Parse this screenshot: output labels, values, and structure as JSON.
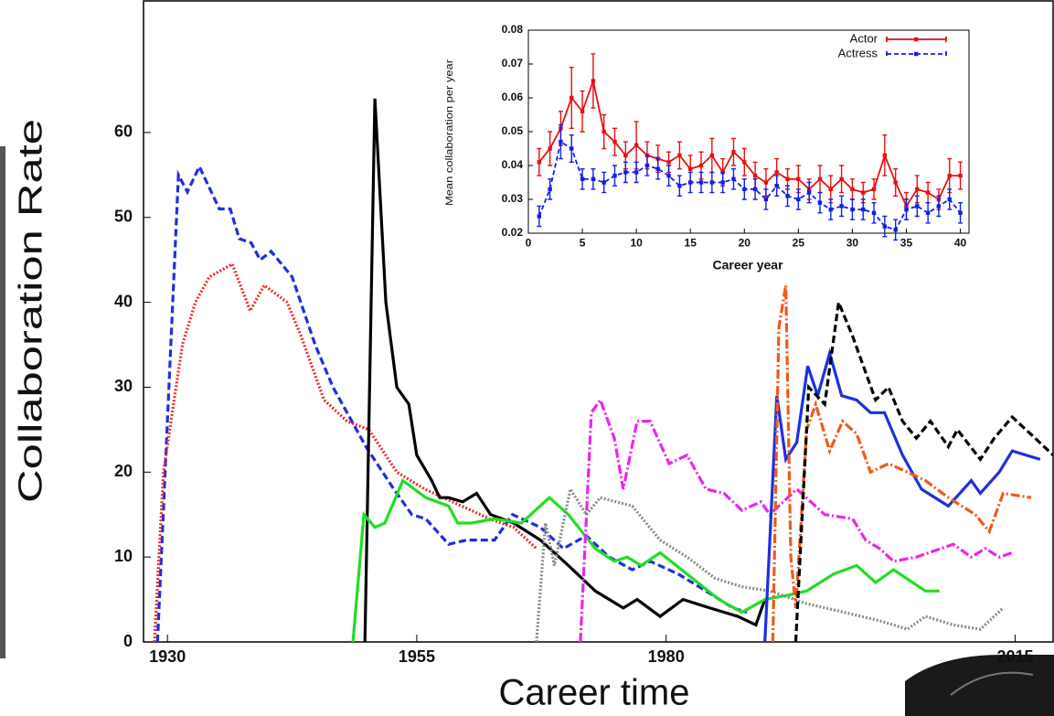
{
  "chart_data": [
    {
      "type": "line",
      "xlabel": "Career time",
      "ylabel": "Collaboration Rate",
      "xlim": [
        1927.6,
        2018.8
      ],
      "xticks": [
        1930,
        1955,
        1980,
        2015
      ],
      "ylim": [
        0,
        75.5
      ],
      "yticks": [
        0,
        10,
        20,
        30,
        40,
        50,
        60
      ],
      "series": [
        {
          "color": "#1f2fe0",
          "dash": "dashed",
          "x": [
            1929,
            1931.1,
            1932,
            1933.2,
            1935.2,
            1936.3,
            1937.2,
            1938.4,
            1939.3,
            1940.4,
            1942.5,
            1944.8,
            1946.6,
            1949.9,
            1952.7,
            1954.5,
            1955.9,
            1958.2,
            1960,
            1962.8,
            1964.6,
            1967.4,
            1969.7,
            1972,
            1974.3,
            1976.6,
            1978.4,
            1981.2,
            1984,
            1986.7,
            1988.1
          ],
          "values": [
            0,
            55,
            53,
            56,
            51,
            51,
            47.5,
            47,
            45,
            46,
            43,
            35,
            30,
            23,
            18,
            15,
            14.5,
            11.5,
            12,
            12,
            15,
            13.5,
            11,
            12.5,
            10,
            8.5,
            9.5,
            8,
            6,
            4,
            3.5
          ]
        },
        {
          "color": "#e83030",
          "dash": "dotted",
          "x": [
            1928.7,
            1929.6,
            1931.5,
            1932.8,
            1934.2,
            1936.5,
            1938.3,
            1939.7,
            1942,
            1943.4,
            1945.7,
            1948,
            1950.2,
            1953,
            1955.8,
            1959.5,
            1962.3,
            1964.7,
            1967
          ],
          "values": [
            0,
            20,
            35,
            40,
            43,
            44.5,
            39,
            42,
            40,
            36,
            28.5,
            26,
            25,
            20,
            18,
            16,
            14.5,
            13.5,
            11
          ]
        },
        {
          "color": "#000000",
          "dash": "solid",
          "x": [
            1949.8,
            1950.8,
            1951.9,
            1953,
            1954.2,
            1955,
            1956.5,
            1957.3,
            1958.2,
            1959.6,
            1961,
            1962.4,
            1964.7,
            1967.4,
            1970.2,
            1972.9,
            1975.7,
            1977.1,
            1979.4,
            1981.7,
            1984.4,
            1987.2,
            1989,
            1989.9
          ],
          "values": [
            0,
            64,
            40,
            30,
            28,
            22,
            19,
            17,
            17,
            16.5,
            17.5,
            15,
            14,
            12,
            9,
            6,
            4,
            5,
            3,
            5,
            4,
            3,
            2,
            5
          ]
        },
        {
          "color": "#22dd22",
          "dash": "solid",
          "x": [
            1948.6,
            1949.7,
            1950.8,
            1951.8,
            1953.6,
            1955.9,
            1958.2,
            1959.1,
            1960.5,
            1962.8,
            1965.5,
            1968.3,
            1970.2,
            1972.9,
            1974.8,
            1976.1,
            1977.5,
            1979.4,
            1982.1,
            1985.3,
            1987.6,
            1989.9,
            1992.2,
            1994.1,
            1996.8,
            1999.1,
            2001,
            2002.8,
            2006,
            2007.4
          ],
          "values": [
            0,
            15,
            13.5,
            14,
            19,
            17,
            16,
            14,
            14,
            14.5,
            14,
            17,
            15,
            11,
            9.5,
            10,
            9,
            10.5,
            8,
            5,
            3.5,
            5,
            5.5,
            6,
            8,
            9,
            7,
            8.5,
            6,
            6
          ]
        },
        {
          "color": "#8a8a8a",
          "dash": "dotted",
          "x": [
            1967,
            1967.9,
            1968.8,
            1970.4,
            1972,
            1973.4,
            1976.6,
            1979.4,
            1982.1,
            1984.9,
            1987.6,
            1990.4,
            1994.1,
            1997.8,
            2001.4,
            2004.2,
            2006,
            2008.8,
            2011.5,
            2013.8
          ],
          "values": [
            0,
            14,
            9,
            18,
            15,
            17,
            16,
            12,
            10,
            7.5,
            6.5,
            6,
            4.5,
            3.5,
            2.5,
            1.5,
            3,
            2,
            1.5,
            4
          ]
        },
        {
          "color": "#ee22ee",
          "dash": "dashdot",
          "x": [
            1971.4,
            1972.5,
            1973.4,
            1974.8,
            1975.7,
            1977.1,
            1978.4,
            1980.3,
            1982.1,
            1984,
            1985.8,
            1987.6,
            1989.5,
            1990.4,
            1993.1,
            1995.9,
            1998.7,
            2000,
            2001.4,
            2002.8,
            2005.1,
            2008.8,
            2010.6,
            2012,
            2013.4,
            2014.7
          ],
          "values": [
            0,
            27,
            28.5,
            24,
            18,
            26,
            26,
            21,
            22,
            18,
            17.5,
            15.5,
            16.5,
            15,
            18,
            15,
            14.5,
            12,
            11,
            9.5,
            10,
            11.5,
            10,
            11,
            10,
            10.5
          ]
        },
        {
          "color": "#1f2fe0",
          "dash": "solid",
          "x": [
            1989.9,
            1991.1,
            1992,
            1993.1,
            1994.2,
            1995.2,
            1996.4,
            1997.6,
            1999.1,
            2000.5,
            2001.9,
            2003.7,
            2005.6,
            2008.3,
            2010.6,
            2011.5,
            2013.4,
            2014.7,
            2017.5
          ],
          "values": [
            0,
            29,
            21.5,
            23.5,
            32.5,
            29,
            34,
            29,
            28.5,
            27,
            27,
            22,
            18,
            16,
            19,
            17.5,
            20,
            22.5,
            21.5
          ]
        },
        {
          "color": "#f05a1a",
          "dash": "dashdot",
          "x": [
            1990.7,
            1991.3,
            1992,
            1992.5,
            1993,
            1994.1,
            1995,
            1996.4,
            1997.7,
            1999.1,
            2000.5,
            2002.3,
            2004.2,
            2006,
            2008.3,
            2011,
            2012.4,
            2013.8,
            2016.6
          ],
          "values": [
            0,
            37,
            42,
            10,
            4,
            25,
            28,
            22.5,
            26,
            24.5,
            20,
            21,
            20,
            19,
            17,
            15,
            13,
            17.5,
            17
          ]
        },
        {
          "color": "#000000",
          "dash": "dashed",
          "x": [
            1993,
            1994.3,
            1995.9,
            1997.3,
            1998.7,
            2001,
            2002.3,
            2003.7,
            2005.1,
            2006.5,
            2008.3,
            2009.2,
            2011.5,
            2012.9,
            2014.7,
            2017,
            2018.8
          ],
          "values": [
            0,
            30,
            28,
            40,
            36,
            28.5,
            30,
            26,
            24,
            26,
            23,
            25,
            21.5,
            24,
            26.5,
            24,
            22
          ]
        }
      ]
    },
    {
      "type": "errorline",
      "xlabel": "Career year",
      "ylabel": "Mean collaboration per year",
      "xlim": [
        0,
        40.8
      ],
      "xticks": [
        0,
        5,
        10,
        15,
        20,
        25,
        30,
        35,
        40
      ],
      "ylim": [
        0.02,
        0.08
      ],
      "yticks": [
        0.02,
        0.03,
        0.04,
        0.05,
        0.06,
        0.07,
        0.08
      ],
      "x": [
        1,
        2,
        3,
        4,
        5,
        6,
        7,
        8,
        9,
        10,
        11,
        12,
        13,
        14,
        15,
        16,
        17,
        18,
        19,
        20,
        21,
        22,
        23,
        24,
        25,
        26,
        27,
        28,
        29,
        30,
        31,
        32,
        33,
        34,
        35,
        36,
        37,
        38,
        39,
        40
      ],
      "series": [
        {
          "name": "Actor",
          "color": "#e81010",
          "dash": "solid",
          "values": [
            0.041,
            0.045,
            0.051,
            0.06,
            0.056,
            0.065,
            0.05,
            0.047,
            0.043,
            0.046,
            0.043,
            0.042,
            0.041,
            0.043,
            0.039,
            0.04,
            0.043,
            0.038,
            0.044,
            0.041,
            0.037,
            0.035,
            0.038,
            0.036,
            0.036,
            0.033,
            0.036,
            0.033,
            0.036,
            0.033,
            0.032,
            0.033,
            0.043,
            0.035,
            0.028,
            0.033,
            0.032,
            0.03,
            0.037,
            0.037
          ],
          "errors": [
            0.004,
            0.005,
            0.005,
            0.009,
            0.006,
            0.008,
            0.005,
            0.004,
            0.004,
            0.007,
            0.004,
            0.004,
            0.003,
            0.004,
            0.004,
            0.004,
            0.005,
            0.004,
            0.004,
            0.004,
            0.004,
            0.004,
            0.004,
            0.003,
            0.004,
            0.003,
            0.004,
            0.004,
            0.004,
            0.003,
            0.003,
            0.003,
            0.006,
            0.004,
            0.004,
            0.004,
            0.003,
            0.003,
            0.005,
            0.004
          ]
        },
        {
          "name": "Actress",
          "color": "#1020e8",
          "dash": "dashed",
          "values": [
            0.025,
            0.033,
            0.047,
            0.045,
            0.036,
            0.036,
            0.035,
            0.037,
            0.038,
            0.038,
            0.04,
            0.039,
            0.037,
            0.034,
            0.035,
            0.035,
            0.035,
            0.035,
            0.036,
            0.033,
            0.033,
            0.03,
            0.034,
            0.031,
            0.03,
            0.032,
            0.029,
            0.027,
            0.028,
            0.027,
            0.027,
            0.026,
            0.022,
            0.021,
            0.027,
            0.028,
            0.026,
            0.028,
            0.03,
            0.026
          ],
          "errors": [
            0.003,
            0.003,
            0.005,
            0.004,
            0.003,
            0.003,
            0.003,
            0.003,
            0.003,
            0.003,
            0.003,
            0.003,
            0.003,
            0.003,
            0.003,
            0.003,
            0.003,
            0.003,
            0.003,
            0.003,
            0.003,
            0.003,
            0.003,
            0.003,
            0.003,
            0.003,
            0.003,
            0.003,
            0.003,
            0.003,
            0.003,
            0.003,
            0.003,
            0.003,
            0.003,
            0.003,
            0.003,
            0.003,
            0.003,
            0.003
          ]
        }
      ]
    }
  ]
}
